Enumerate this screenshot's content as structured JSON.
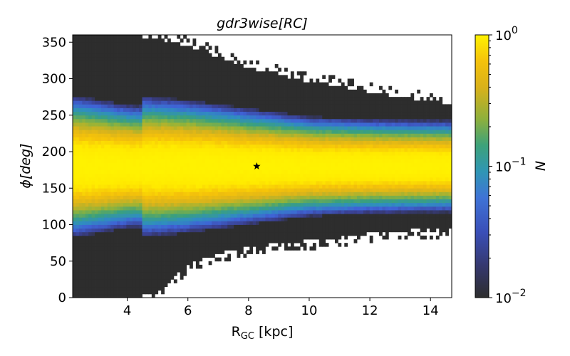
{
  "chart_data": {
    "type": "heatmap",
    "title": "gdr3wise[RC]",
    "xlabel_main": "R",
    "xlabel_sub": "GC",
    "xlabel_unit": " [kpc]",
    "ylabel_main": "ϕ",
    "ylabel_unit": "[deg]",
    "colorbar_label": "N",
    "colorbar_scale": "log",
    "colorbar_range": [
      0.01,
      1
    ],
    "colorbar_ticks": [
      {
        "base": "10",
        "exp": "0",
        "value": 1
      },
      {
        "base": "10",
        "exp": "−1",
        "value": 0.1
      },
      {
        "base": "10",
        "exp": "−2",
        "value": 0.01
      }
    ],
    "xlim": [
      2.2,
      14.7
    ],
    "ylim": [
      0,
      360
    ],
    "xticks": [
      "4",
      "6",
      "8",
      "10",
      "12",
      "14"
    ],
    "xtick_values": [
      4,
      6,
      8,
      10,
      12,
      14
    ],
    "yticks": [
      "0",
      "50",
      "100",
      "150",
      "200",
      "250",
      "300",
      "350"
    ],
    "ytick_values": [
      0,
      50,
      100,
      150,
      200,
      250,
      300,
      350
    ],
    "marker": {
      "x": 8.27,
      "y": 180,
      "symbol": "star"
    },
    "density_model": {
      "peak_phi": 180,
      "core_halfwidth": [
        [
          2.2,
          60
        ],
        [
          4,
          52
        ],
        [
          6,
          48
        ],
        [
          8,
          42
        ],
        [
          10,
          36
        ],
        [
          12,
          34
        ],
        [
          14.7,
          33
        ]
      ],
      "dark_upper_edge": [
        [
          2.2,
          360
        ],
        [
          4,
          360
        ],
        [
          5,
          355
        ],
        [
          6,
          345
        ],
        [
          7,
          330
        ],
        [
          8,
          315
        ],
        [
          9,
          305
        ],
        [
          10,
          295
        ],
        [
          11,
          290
        ],
        [
          12,
          282
        ],
        [
          13,
          275
        ],
        [
          14.7,
          265
        ]
      ],
      "dark_lower_edge": [
        [
          2.2,
          0
        ],
        [
          4,
          0
        ],
        [
          5,
          5
        ],
        [
          6,
          45
        ],
        [
          7,
          60
        ],
        [
          8,
          70
        ],
        [
          9,
          75
        ],
        [
          10,
          78
        ],
        [
          11,
          82
        ],
        [
          12,
          88
        ],
        [
          13,
          92
        ],
        [
          14.7,
          95
        ]
      ]
    },
    "colors": {
      "empty": "#2d2d2d",
      "colormap": [
        "#2d2d2d",
        "#3a3f8f",
        "#3f63d6",
        "#2f8fbf",
        "#3aa07d",
        "#8fb33b",
        "#d8b31c",
        "#f5c20a",
        "#ffea00",
        "#fff200"
      ]
    }
  }
}
